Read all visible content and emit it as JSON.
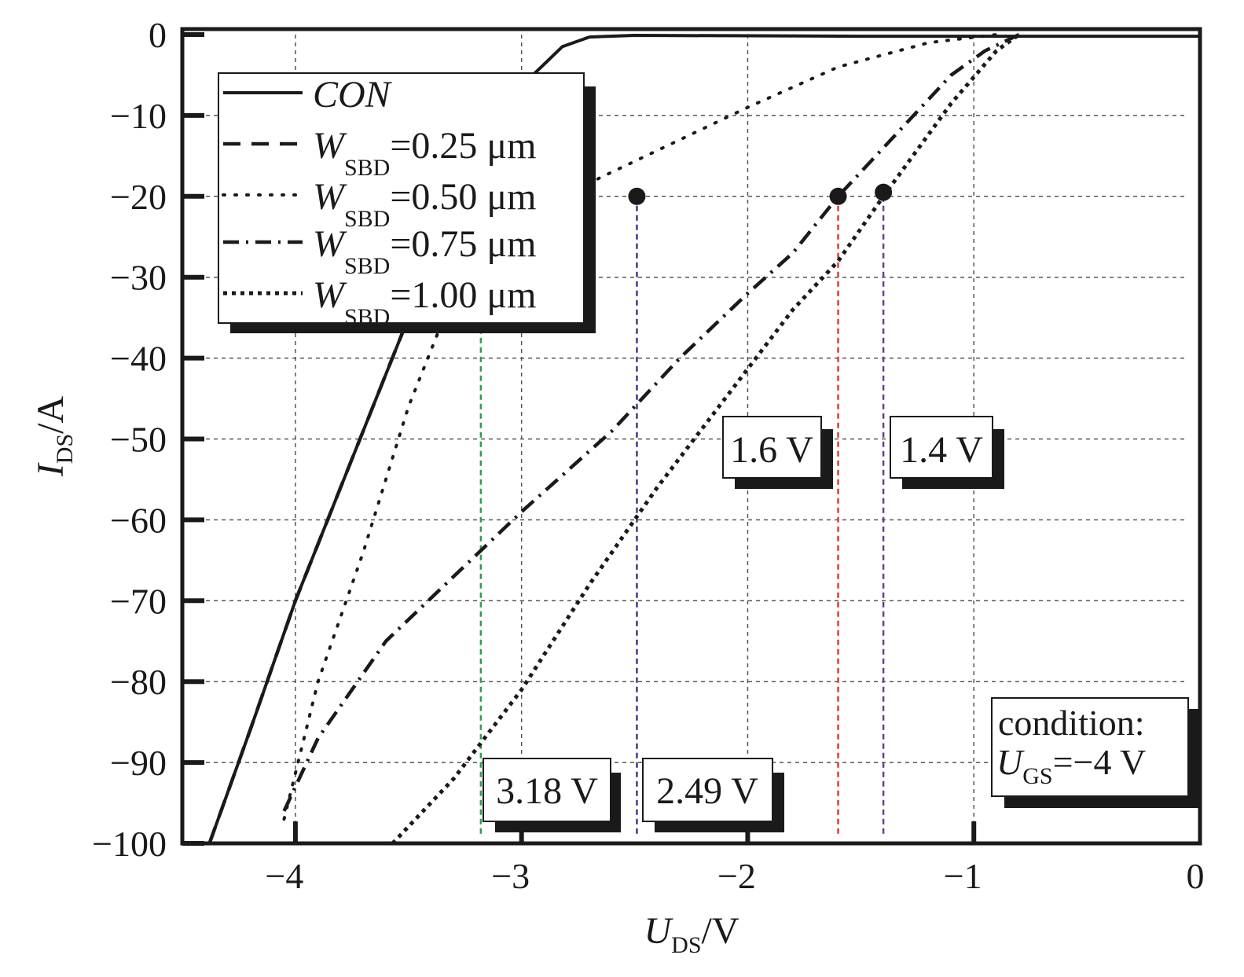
{
  "chart_data": {
    "type": "line",
    "title": "",
    "xlabel": {
      "main": "U",
      "sub": "DS",
      "unit": "/V"
    },
    "ylabel": {
      "main": "I",
      "sub": "DS",
      "unit": "/A"
    },
    "xlim": [
      -4.5,
      0
    ],
    "ylim": [
      -100,
      0
    ],
    "xticks": [
      -4,
      -3,
      -2,
      -1,
      0
    ],
    "xtick_labels": [
      "−4",
      "−3",
      "−2",
      "−1",
      "0"
    ],
    "yticks": [
      0,
      -10,
      -20,
      -30,
      -40,
      -50,
      -60,
      -70,
      -80,
      -90,
      -100
    ],
    "ytick_labels": [
      "0",
      "−10",
      "−20",
      "−30",
      "−40",
      "−50",
      "−60",
      "−70",
      "−80",
      "−90",
      "−100"
    ],
    "grid": true,
    "legend_position": "top-left",
    "series": [
      {
        "name": "CON",
        "legend_main": "CON",
        "legend_sub": "",
        "legend_value": "",
        "style": "solid",
        "points": [
          [
            -4.38,
            -100
          ],
          [
            -4.2,
            -86
          ],
          [
            -4.0,
            -70
          ],
          [
            -3.8,
            -56
          ],
          [
            -3.6,
            -42
          ],
          [
            -3.5,
            -35
          ],
          [
            -3.3,
            -21.5
          ],
          [
            -3.1,
            -10
          ],
          [
            -2.95,
            -5
          ],
          [
            -2.82,
            -1.5
          ],
          [
            -2.7,
            -0.3
          ],
          [
            -2.5,
            -0.1
          ],
          [
            -1.5,
            -0.2
          ],
          [
            -0.5,
            -0.2
          ],
          [
            0,
            -0.2
          ]
        ]
      },
      {
        "name": "WSBD=0.25 μm",
        "legend_main": "W",
        "legend_sub": "SBD",
        "legend_value": "=0.25 μm",
        "style": "dash",
        "points": [
          [
            -4.38,
            -100
          ],
          [
            -4.2,
            -86
          ],
          [
            -4.0,
            -70
          ],
          [
            -3.8,
            -56
          ],
          [
            -3.6,
            -42
          ],
          [
            -3.5,
            -35
          ],
          [
            -3.3,
            -21.5
          ],
          [
            -3.1,
            -10
          ],
          [
            -2.95,
            -5
          ]
        ]
      },
      {
        "name": "WSBD=0.50 μm",
        "legend_main": "W",
        "legend_sub": "SBD",
        "legend_value": "=0.50 μm",
        "style": "dot",
        "points": [
          [
            -4.05,
            -97
          ],
          [
            -3.9,
            -80
          ],
          [
            -3.7,
            -64
          ],
          [
            -3.5,
            -46
          ],
          [
            -3.3,
            -32
          ],
          [
            -3.1,
            -24
          ],
          [
            -2.9,
            -21
          ],
          [
            -2.6,
            -17
          ],
          [
            -2.3,
            -13
          ],
          [
            -2.0,
            -9
          ],
          [
            -1.6,
            -4
          ],
          [
            -1.2,
            -1
          ],
          [
            -0.9,
            0
          ]
        ]
      },
      {
        "name": "WSBD=0.75 μm",
        "legend_main": "W",
        "legend_sub": "SBD",
        "legend_value": "=0.75 μm",
        "style": "dashdot",
        "points": [
          [
            -4.05,
            -96
          ],
          [
            -3.9,
            -87
          ],
          [
            -3.6,
            -75
          ],
          [
            -3.3,
            -67
          ],
          [
            -3.0,
            -59
          ],
          [
            -2.6,
            -49
          ],
          [
            -2.3,
            -40
          ],
          [
            -2.0,
            -32
          ],
          [
            -1.8,
            -27
          ],
          [
            -1.6,
            -20
          ],
          [
            -1.3,
            -11
          ],
          [
            -1.1,
            -5
          ],
          [
            -0.95,
            -2
          ],
          [
            -0.8,
            0
          ]
        ]
      },
      {
        "name": "WSBD=1.00 μm",
        "legend_main": "W",
        "legend_sub": "SBD",
        "legend_value": "=1.00 μm",
        "style": "dotted",
        "points": [
          [
            -3.57,
            -100
          ],
          [
            -3.3,
            -92
          ],
          [
            -3.0,
            -81
          ],
          [
            -2.7,
            -68
          ],
          [
            -2.4,
            -56
          ],
          [
            -2.1,
            -45
          ],
          [
            -1.8,
            -34
          ],
          [
            -1.6,
            -28
          ],
          [
            -1.4,
            -20
          ],
          [
            -1.1,
            -8.5
          ],
          [
            -0.9,
            -2
          ],
          [
            -0.8,
            0
          ]
        ]
      }
    ],
    "markers": [
      {
        "x": -2.49,
        "y": -20
      },
      {
        "x": -1.6,
        "y": -20
      },
      {
        "x": -1.4,
        "y": -19.5
      }
    ],
    "reference_lines": [
      {
        "x": -3.18,
        "label": "3.18 V",
        "color": "#2e9e4f"
      },
      {
        "x": -2.49,
        "label": "2.49 V",
        "color": "#3c3c8c"
      },
      {
        "x": -1.6,
        "label": "1.6 V",
        "color": "#e03c31"
      },
      {
        "x": -1.4,
        "label": "1.4 V",
        "color": "#6a3d9a"
      }
    ],
    "condition": {
      "line1": "condition:",
      "main": "U",
      "sub": "GS",
      "value": "=−4 V"
    }
  }
}
